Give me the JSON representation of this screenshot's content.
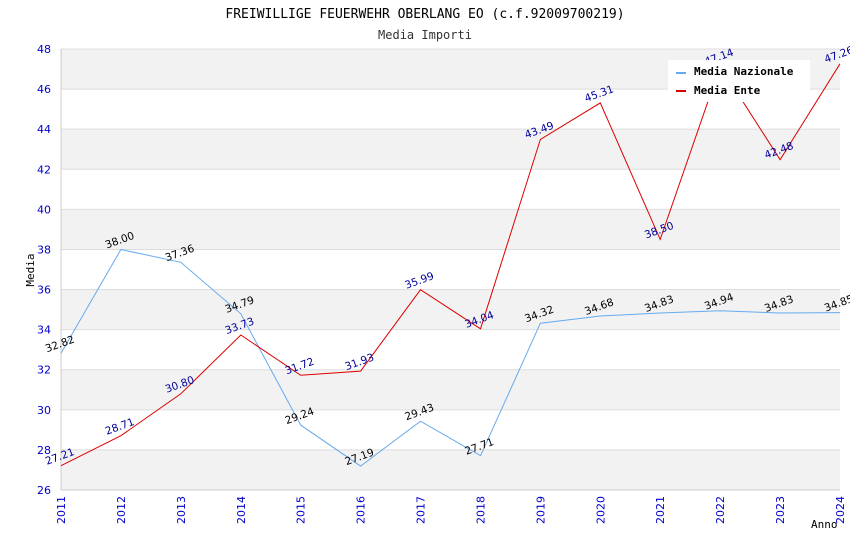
{
  "chart_data": {
    "type": "line",
    "title": "FREIWILLIGE FEUERWEHR OBERLANG EO (c.f.92009700219)",
    "subtitle": "Media Importi",
    "xlabel": "Anno",
    "ylabel": "Media",
    "ylim": [
      26,
      48
    ],
    "yticks": [
      "26",
      "28",
      "30",
      "32",
      "34",
      "36",
      "38",
      "40",
      "42",
      "44",
      "46",
      "48"
    ],
    "categories": [
      "2011",
      "2012",
      "2013",
      "2014",
      "2015",
      "2016",
      "2017",
      "2018",
      "2019",
      "2020",
      "2021",
      "2022",
      "2023",
      "2024"
    ],
    "legend_position": "top-right",
    "series": [
      {
        "name": "Media Nazionale",
        "color": "#66aaee",
        "label_color": "#000000",
        "values": [
          32.82,
          38.0,
          37.36,
          34.79,
          29.24,
          27.19,
          29.43,
          27.71,
          34.32,
          34.68,
          34.83,
          34.94,
          34.83,
          34.85
        ],
        "labels": [
          "32.82",
          "38.00",
          "37.36",
          "34.79",
          "29.24",
          "27.19",
          "29.43",
          "27.71",
          "34.32",
          "34.68",
          "34.83",
          "34.94",
          "34.83",
          "34.85"
        ]
      },
      {
        "name": "Media Ente",
        "color": "#dd0000",
        "label_color": "#000099",
        "values": [
          27.21,
          28.71,
          30.8,
          33.73,
          31.72,
          31.93,
          35.99,
          34.04,
          43.49,
          45.31,
          38.5,
          47.14,
          42.48,
          47.26
        ],
        "labels": [
          "27.21",
          "28.71",
          "30.80",
          "33.73",
          "31.72",
          "31.93",
          "35.99",
          "34.04",
          "43.49",
          "45.31",
          "38.50",
          "47.14",
          "42.48",
          "47.26"
        ]
      }
    ]
  }
}
